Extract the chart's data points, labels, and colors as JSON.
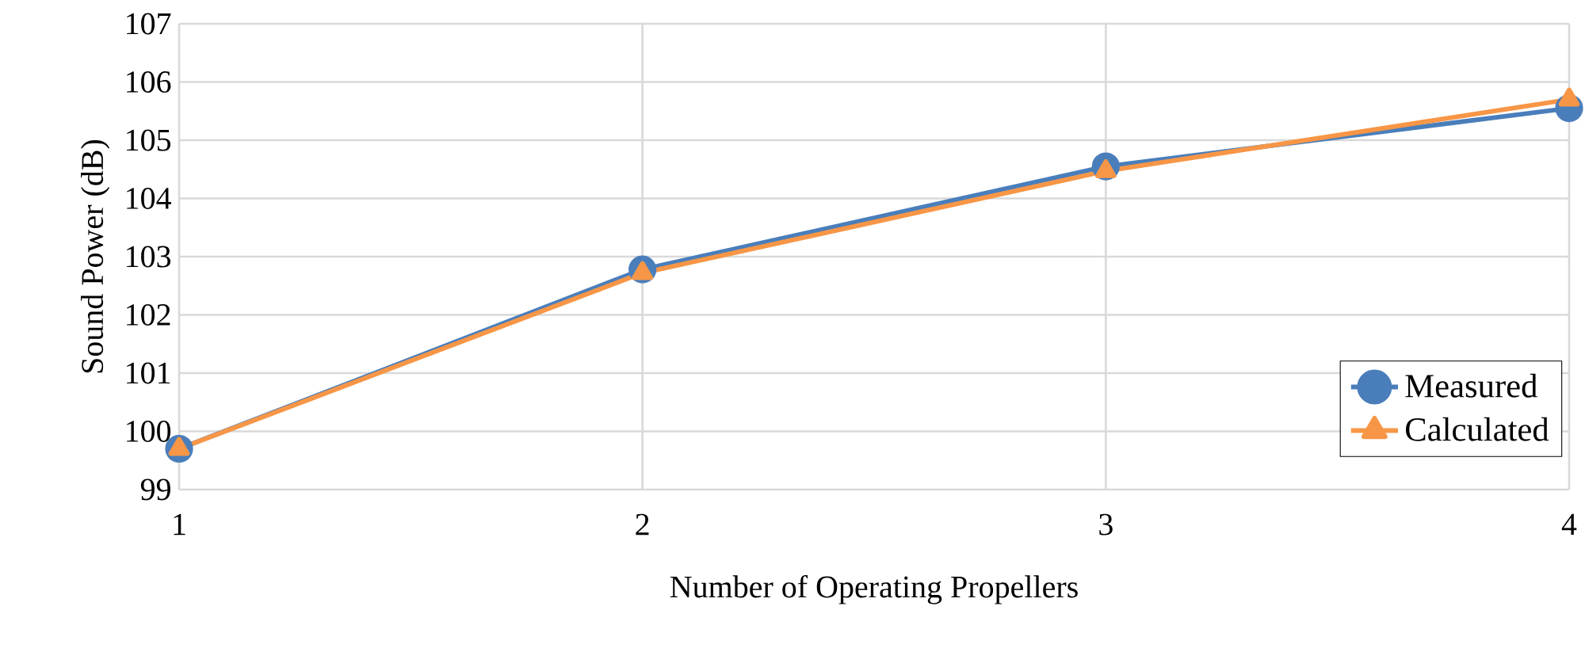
{
  "chart_data": {
    "type": "line",
    "xlabel": "Number of Operating Propellers",
    "ylabel": "Sound Power (dB)",
    "x": [
      1,
      2,
      3,
      4
    ],
    "series": [
      {
        "name": "Measured",
        "color": "#4a7ebb",
        "marker": "circle",
        "values": [
          99.7,
          102.78,
          104.55,
          105.55
        ]
      },
      {
        "name": "Calculated",
        "color": "#f79646",
        "marker": "triangle",
        "values": [
          99.7,
          102.72,
          104.47,
          105.7
        ]
      }
    ],
    "xlim": [
      1,
      4
    ],
    "ylim": [
      99,
      107
    ],
    "xticks": [
      1,
      2,
      3,
      4
    ],
    "yticks": [
      99,
      100,
      101,
      102,
      103,
      104,
      105,
      106,
      107
    ],
    "grid": true,
    "legend": "bottom right",
    "line_style": "solid"
  }
}
